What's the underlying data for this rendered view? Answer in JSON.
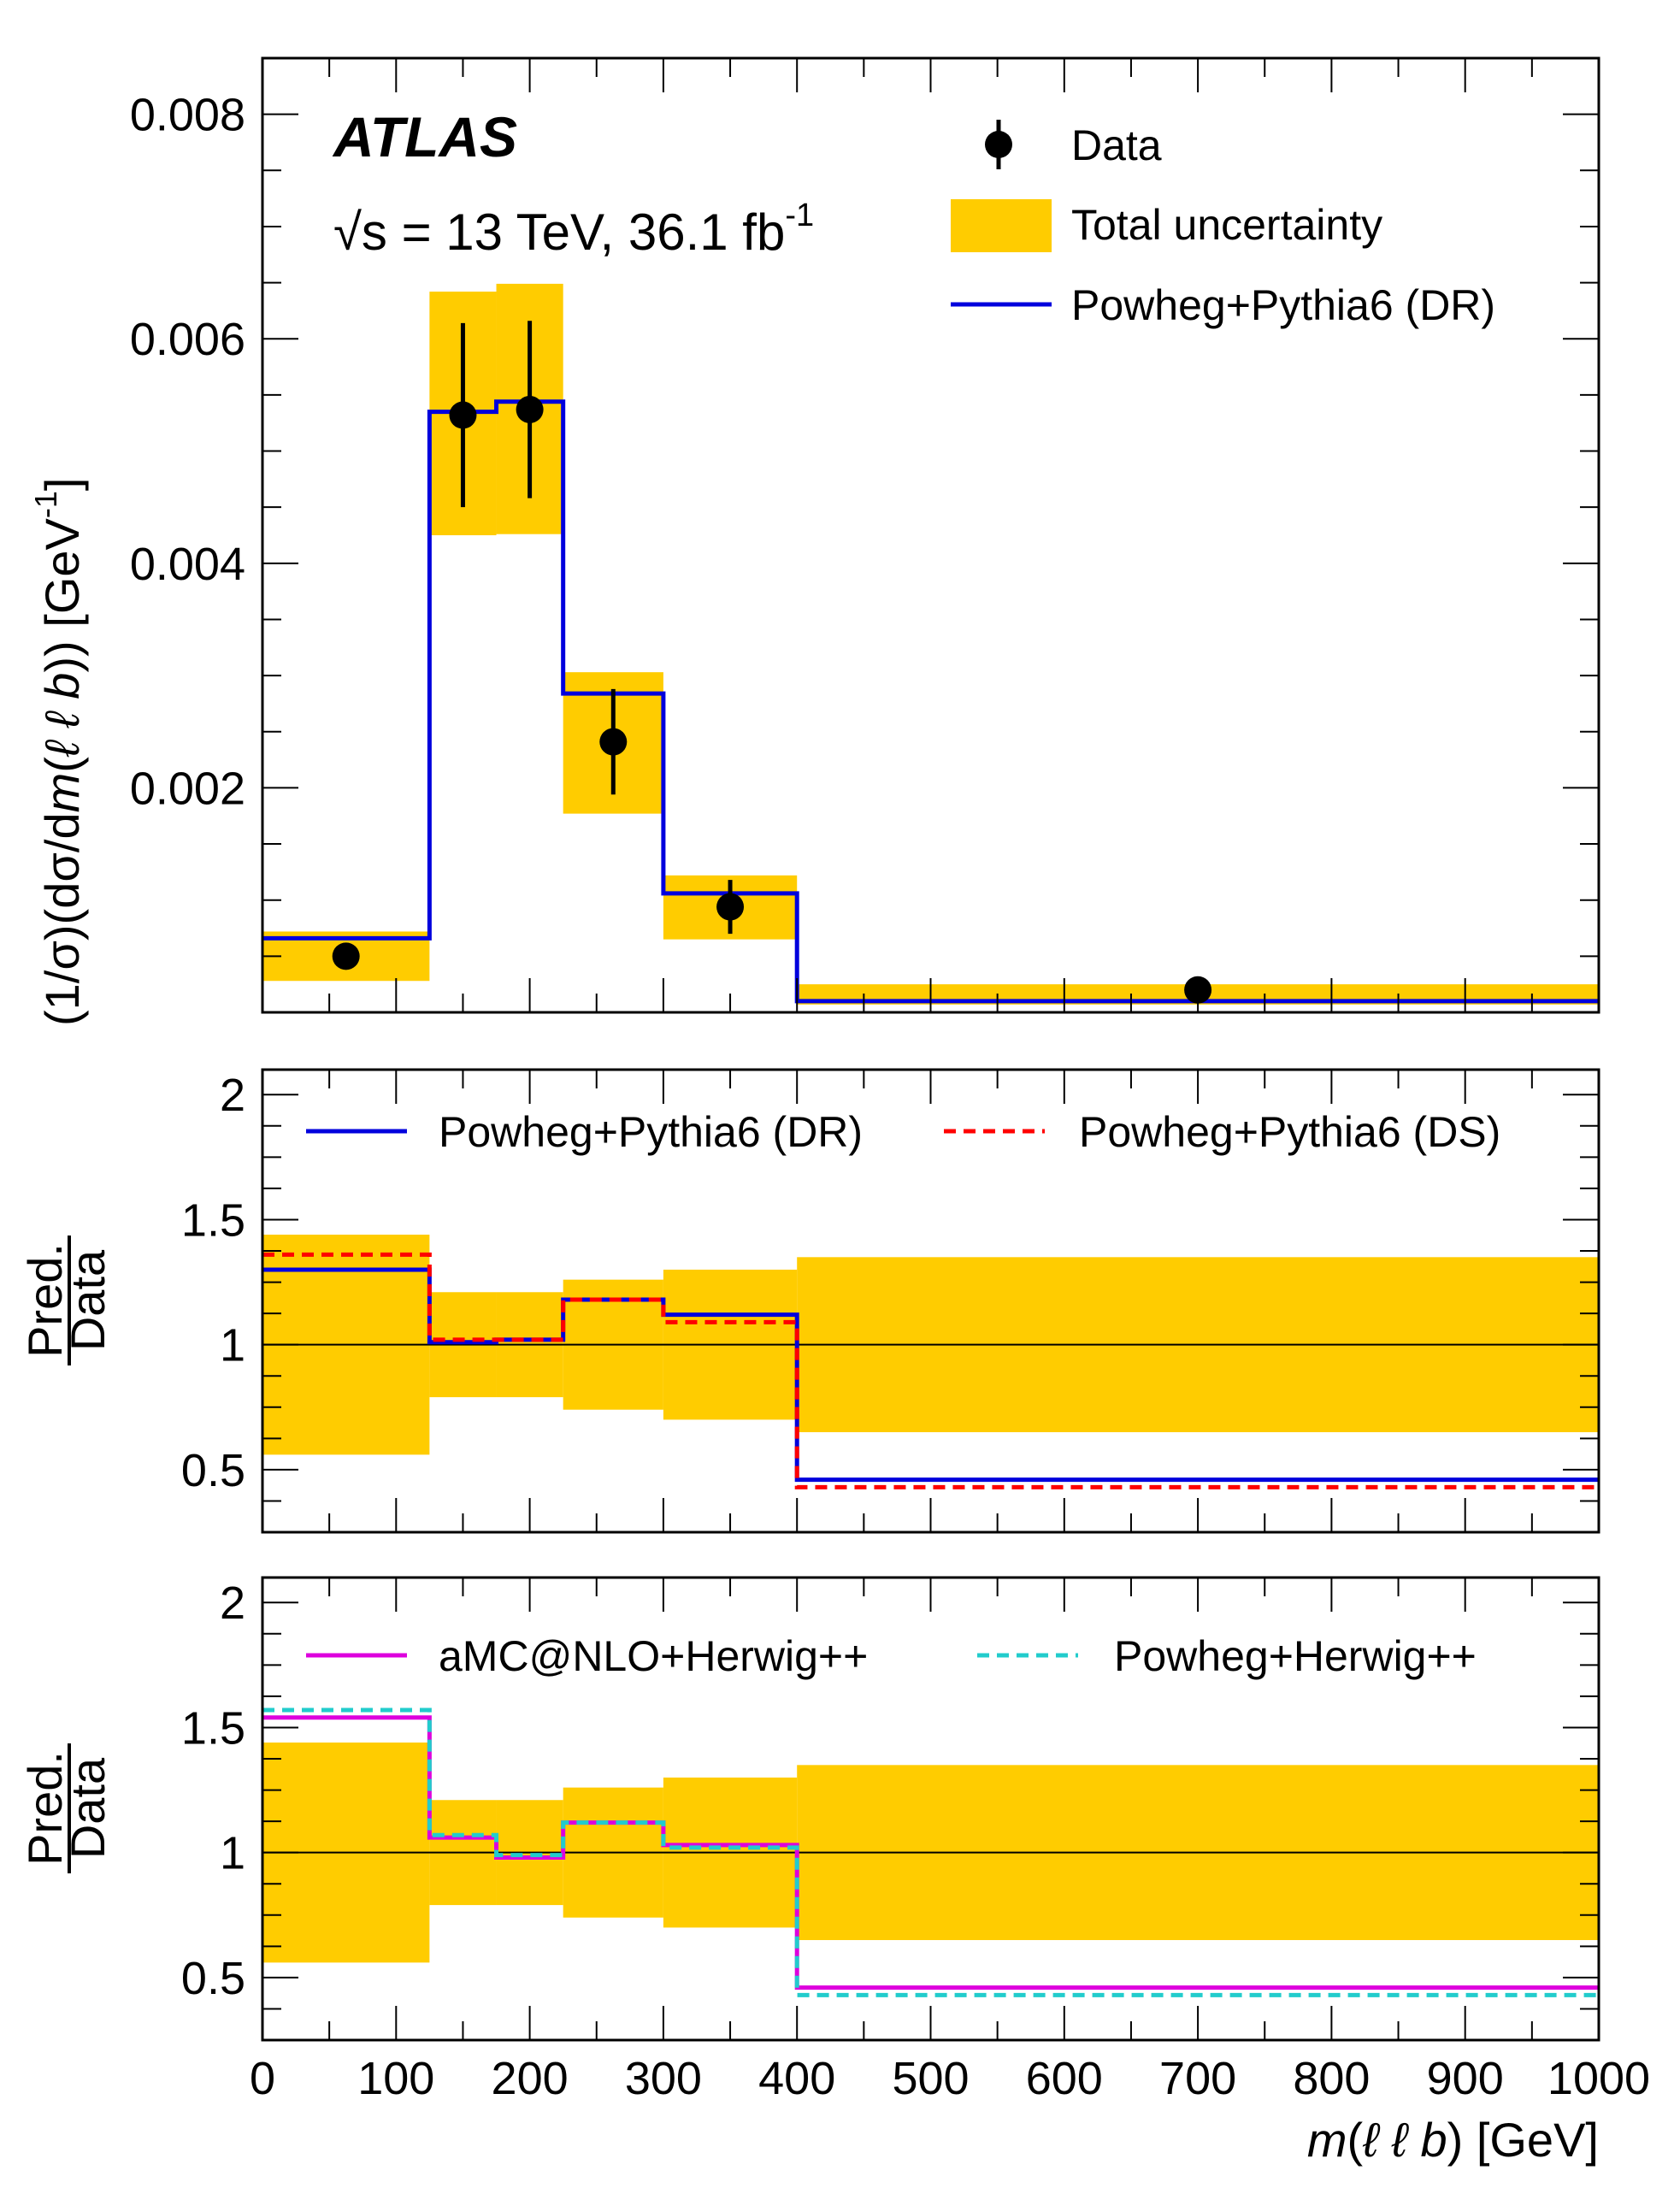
{
  "chart_data": [
    {
      "type": "histogram",
      "experiment": "ATLAS",
      "energy_label": "√s = 13 TeV, 36.1 fb",
      "energy_label_sup": "-1",
      "ylabel_parts": [
        "(1/σ)(dσ/d",
        "m",
        "(",
        "ℓ ℓ b",
        ")) [GeV",
        "-1",
        "]"
      ],
      "xlim": [
        0,
        1000
      ],
      "ylim": [
        0,
        0.0085
      ],
      "yticks": [
        0.002,
        0.004,
        0.006,
        0.008
      ],
      "ytick_labels": [
        "0.002",
        "0.004",
        "0.006",
        "0.008"
      ],
      "bin_edges": [
        0,
        125,
        175,
        225,
        300,
        400,
        1000
      ],
      "data": {
        "name": "Data",
        "x": [
          62.5,
          150,
          200,
          262.5,
          350,
          700
        ],
        "y": [
          0.0005,
          0.00532,
          0.00537,
          0.00241,
          0.00094,
          0.0002
        ],
        "err": [
          6e-05,
          0.00082,
          0.00079,
          0.00047,
          0.00024,
          3e-05
        ]
      },
      "uncertainty_band": {
        "name": "Total uncertainty",
        "lower": [
          0.00028,
          0.00425,
          0.00426,
          0.00177,
          0.00065,
          7e-05
        ],
        "upper": [
          0.00072,
          0.00642,
          0.00649,
          0.00303,
          0.00122,
          0.00025
        ]
      },
      "series": [
        {
          "name": "Powheg+Pythia6 (DR)",
          "color": "#0000dd",
          "values": [
            0.00066,
            0.00535,
            0.00544,
            0.00284,
            0.00106,
            0.0001
          ]
        }
      ]
    },
    {
      "type": "ratio",
      "ylabel_num": "Pred.",
      "ylabel_den": "Data",
      "xlim": [
        0,
        1000
      ],
      "ylim": [
        0.25,
        2.1
      ],
      "yticks": [
        0.5,
        1,
        1.5,
        2
      ],
      "ytick_labels": [
        "0.5",
        "1",
        "1.5",
        "2"
      ],
      "bin_edges": [
        0,
        125,
        175,
        225,
        300,
        400,
        1000
      ],
      "band_lower": [
        0.56,
        0.79,
        0.79,
        0.74,
        0.7,
        0.65
      ],
      "band_upper": [
        1.44,
        1.21,
        1.21,
        1.26,
        1.3,
        1.35
      ],
      "series": [
        {
          "name": "Powheg+Pythia6 (DR)",
          "color": "#0000dd",
          "style": "solid",
          "values": [
            1.3,
            1.01,
            1.02,
            1.18,
            1.12,
            0.46
          ]
        },
        {
          "name": "Powheg+Pythia6 (DS)",
          "color": "#ff0000",
          "style": "dashed",
          "values": [
            1.36,
            1.02,
            1.02,
            1.18,
            1.09,
            0.43
          ]
        }
      ]
    },
    {
      "type": "ratio",
      "ylabel_num": "Pred.",
      "ylabel_den": "Data",
      "xlim": [
        0,
        1000
      ],
      "ylim": [
        0.25,
        2.1
      ],
      "yticks": [
        0.5,
        1,
        1.5,
        2
      ],
      "ytick_labels": [
        "0.5",
        "1",
        "1.5",
        "2"
      ],
      "xticks": [
        0,
        100,
        200,
        300,
        400,
        500,
        600,
        700,
        800,
        900,
        1000
      ],
      "xtick_labels": [
        "0",
        "100",
        "200",
        "300",
        "400",
        "500",
        "600",
        "700",
        "800",
        "900",
        "1000"
      ],
      "xlabel_parts": [
        "m",
        "(",
        "ℓ ℓ b",
        ") [GeV]"
      ],
      "bin_edges": [
        0,
        125,
        175,
        225,
        300,
        400,
        1000
      ],
      "band_lower": [
        0.56,
        0.79,
        0.79,
        0.74,
        0.7,
        0.65
      ],
      "band_upper": [
        1.44,
        1.21,
        1.21,
        1.26,
        1.3,
        1.35
      ],
      "series": [
        {
          "name": "aMC@NLO+Herwig++",
          "color": "#dd00dd",
          "style": "solid",
          "values": [
            1.54,
            1.06,
            0.98,
            1.12,
            1.03,
            0.46
          ]
        },
        {
          "name": "Powheg+Herwig++",
          "color": "#22cccc",
          "style": "dashed",
          "values": [
            1.57,
            1.07,
            0.99,
            1.12,
            1.02,
            0.43
          ]
        }
      ]
    }
  ],
  "colors": {
    "band": "#ffcc00",
    "data": "#000000",
    "frame": "#000000"
  }
}
